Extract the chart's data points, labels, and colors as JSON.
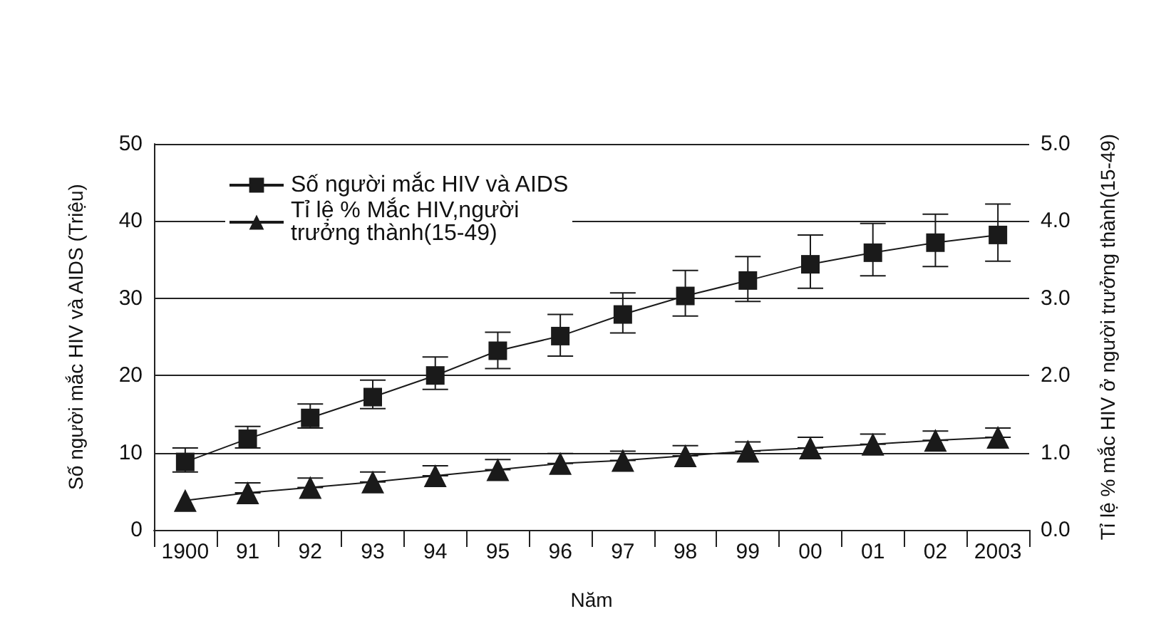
{
  "chart_data": {
    "type": "line",
    "xlabel": "Năm",
    "ylabel": "Số người mắc HIV và AIDS (Triệu)",
    "y2label": "Tỉ lệ % mắc HIV ở người trưởng thành(15-49)",
    "categories": [
      "1900",
      "91",
      "92",
      "93",
      "94",
      "95",
      "96",
      "97",
      "98",
      "99",
      "00",
      "01",
      "02",
      "2003"
    ],
    "series": [
      {
        "name": "Số người mắc HIV và AIDS",
        "color": "#1a1a1a",
        "marker": "square",
        "values": [
          8.8,
          11.8,
          14.5,
          17.2,
          20.0,
          23.2,
          25.1,
          27.9,
          30.3,
          32.3,
          34.4,
          35.9,
          37.2,
          38.2
        ],
        "errors": [
          [
            7.5,
            10.6
          ],
          [
            10.6,
            13.4
          ],
          [
            13.2,
            16.3
          ],
          [
            15.7,
            19.4
          ],
          [
            18.2,
            22.4
          ],
          [
            20.9,
            25.6
          ],
          [
            22.5,
            27.9
          ],
          [
            25.5,
            30.7
          ],
          [
            27.7,
            33.6
          ],
          [
            29.6,
            35.4
          ],
          [
            31.3,
            38.2
          ],
          [
            32.9,
            39.7
          ],
          [
            34.1,
            40.9
          ],
          [
            34.8,
            42.2
          ]
        ]
      },
      {
        "name": "Tỉ lệ % Mắc HIV,người trưởng thành(15-49)",
        "color": "#1a1a1a",
        "marker": "triangle",
        "axis": "y2",
        "values": [
          0.38,
          0.48,
          0.55,
          0.62,
          0.7,
          0.78,
          0.86,
          0.9,
          0.96,
          1.02,
          1.06,
          1.11,
          1.16,
          1.2
        ],
        "errors": [
          null,
          [
            0.48,
            0.61
          ],
          [
            0.55,
            0.67
          ],
          [
            0.62,
            0.75
          ],
          [
            0.7,
            0.83
          ],
          [
            0.78,
            0.91
          ],
          [
            0.86,
            0.99
          ],
          [
            0.9,
            1.02
          ],
          [
            0.96,
            1.09
          ],
          [
            1.02,
            1.14
          ],
          [
            1.06,
            1.2
          ],
          [
            1.11,
            1.24
          ],
          [
            1.16,
            1.28
          ],
          [
            1.2,
            1.32
          ]
        ]
      }
    ],
    "ylim": [
      0,
      50
    ],
    "yticks": [
      0,
      10,
      20,
      30,
      40,
      50
    ],
    "y2lim": [
      0,
      5
    ],
    "y2ticks": [
      {
        "value": 0,
        "label": "0.0"
      },
      {
        "value": 1,
        "label": "1.0"
      },
      {
        "value": 2,
        "label": "2.0"
      },
      {
        "value": 3,
        "label": "3.0"
      },
      {
        "value": 4,
        "label": "4.0"
      },
      {
        "value": 5,
        "label": "5.0"
      }
    ],
    "grid": "y",
    "legend": "top left",
    "line_style": "solid"
  }
}
